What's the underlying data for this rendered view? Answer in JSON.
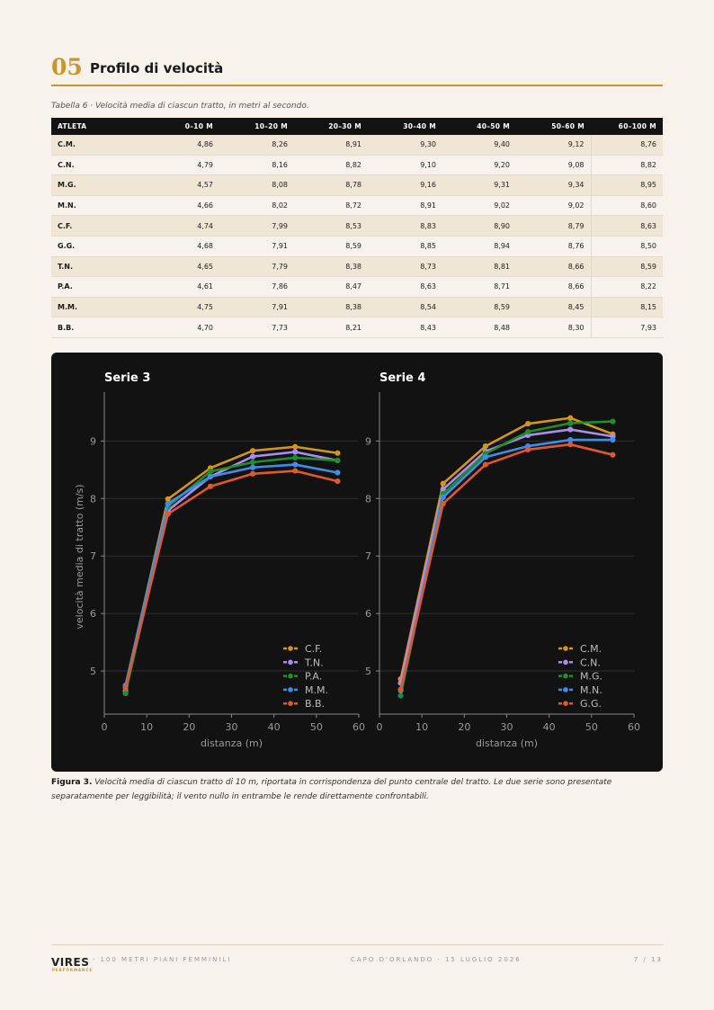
{
  "section": {
    "number": "05",
    "title": "Profilo di velocità"
  },
  "table": {
    "caption": "Tabella 6 · Velocità media di ciascun tratto, in metri al secondo.",
    "headers": [
      "ATLETA",
      "0–10 M",
      "10–20 M",
      "20–30 M",
      "30–40 M",
      "40–50 M",
      "50–60 M",
      "60–100 M"
    ],
    "rows": [
      [
        "C.M.",
        "4,86",
        "8,26",
        "8,91",
        "9,30",
        "9,40",
        "9,12",
        "8,76"
      ],
      [
        "C.N.",
        "4,79",
        "8,16",
        "8,82",
        "9,10",
        "9,20",
        "9,08",
        "8,82"
      ],
      [
        "M.G.",
        "4,57",
        "8,08",
        "8,78",
        "9,16",
        "9,31",
        "9,34",
        "8,95"
      ],
      [
        "M.N.",
        "4,66",
        "8,02",
        "8,72",
        "8,91",
        "9,02",
        "9,02",
        "8,60"
      ],
      [
        "C.F.",
        "4,74",
        "7,99",
        "8,53",
        "8,83",
        "8,90",
        "8,79",
        "8,63"
      ],
      [
        "G.G.",
        "4,68",
        "7,91",
        "8,59",
        "8,85",
        "8,94",
        "8,76",
        "8,50"
      ],
      [
        "T.N.",
        "4,65",
        "7,79",
        "8,38",
        "8,73",
        "8,81",
        "8,66",
        "8,59"
      ],
      [
        "P.A.",
        "4,61",
        "7,86",
        "8,47",
        "8,63",
        "8,71",
        "8,66",
        "8,22"
      ],
      [
        "M.M.",
        "4,75",
        "7,91",
        "8,38",
        "8,54",
        "8,59",
        "8,45",
        "8,15"
      ],
      [
        "B.B.",
        "4,70",
        "7,73",
        "8,21",
        "8,43",
        "8,48",
        "8,30",
        "7,93"
      ]
    ]
  },
  "chart_data": [
    {
      "type": "line",
      "title": "Serie 3",
      "xlabel": "distanza (m)",
      "ylabel": "velocità media di tratto (m/s)",
      "xlim": [
        0,
        60
      ],
      "ylim": [
        4.25,
        9.85
      ],
      "xticks": [
        0,
        10,
        20,
        30,
        40,
        50,
        60
      ],
      "yticks": [
        5,
        6,
        7,
        8,
        9
      ],
      "grid": "y",
      "legend": "bottom-right",
      "x": [
        5,
        15,
        25,
        35,
        45,
        55
      ],
      "series": [
        {
          "name": "C.F.",
          "color": "#d4951d",
          "values": [
            4.74,
            7.99,
            8.53,
            8.83,
            8.9,
            8.79
          ]
        },
        {
          "name": "T.N.",
          "color": "#a98ef0",
          "values": [
            4.65,
            7.79,
            8.38,
            8.73,
            8.81,
            8.66
          ]
        },
        {
          "name": "P.A.",
          "color": "#1f8f2b",
          "values": [
            4.61,
            7.86,
            8.47,
            8.63,
            8.71,
            8.66
          ]
        },
        {
          "name": "M.M.",
          "color": "#3e8ee8",
          "values": [
            4.75,
            7.91,
            8.38,
            8.54,
            8.59,
            8.45
          ]
        },
        {
          "name": "B.B.",
          "color": "#e2582c",
          "values": [
            4.7,
            7.73,
            8.21,
            8.43,
            8.48,
            8.3
          ]
        }
      ]
    },
    {
      "type": "line",
      "title": "Serie 4",
      "xlabel": "distanza (m)",
      "ylabel": "",
      "xlim": [
        0,
        60
      ],
      "ylim": [
        4.25,
        9.85
      ],
      "xticks": [
        0,
        10,
        20,
        30,
        40,
        50,
        60
      ],
      "yticks": [
        5,
        6,
        7,
        8,
        9
      ],
      "grid": "y",
      "legend": "bottom-right",
      "x": [
        5,
        15,
        25,
        35,
        45,
        55
      ],
      "series": [
        {
          "name": "C.M.",
          "color": "#d4951d",
          "values": [
            4.86,
            8.26,
            8.91,
            9.3,
            9.4,
            9.12
          ]
        },
        {
          "name": "C.N.",
          "color": "#a98ef0",
          "values": [
            4.79,
            8.16,
            8.82,
            9.1,
            9.2,
            9.08
          ]
        },
        {
          "name": "M.G.",
          "color": "#1f8f2b",
          "values": [
            4.57,
            8.08,
            8.78,
            9.16,
            9.31,
            9.34
          ]
        },
        {
          "name": "M.N.",
          "color": "#3e8ee8",
          "values": [
            4.66,
            8.02,
            8.72,
            8.91,
            9.02,
            9.02
          ]
        },
        {
          "name": "G.G.",
          "color": "#e2582c",
          "values": [
            4.68,
            7.91,
            8.59,
            8.85,
            8.94,
            8.76
          ]
        }
      ]
    }
  ],
  "figure": {
    "label": "Figura 3.",
    "text": "Velocità media di ciascun tratto di 10 m, riportata in corrispondenza del punto centrale del tratto. Le due serie sono presentate separatamente per leggibilità; il vento nullo in entrambe le rende direttamente confrontabili."
  },
  "footer": {
    "logo": "VIRES",
    "logo_sub": "PERFORMANCE",
    "left": "· 100 METRI PIANI FEMMINILI",
    "middle": "CAPO D'ORLANDO · 15 LUGLIO 2026",
    "right": "7 / 13"
  },
  "colors": {
    "accent": "#c8962e",
    "chart_bg": "#121212"
  }
}
